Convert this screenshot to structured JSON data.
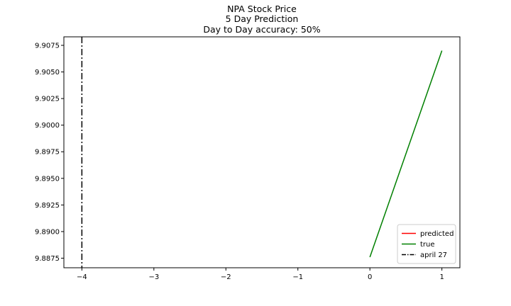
{
  "chart_data": {
    "type": "line",
    "title": [
      "NPA Stock Price",
      "5 Day Prediction",
      "Day to Day accuracy: 50%"
    ],
    "xlabel": "",
    "ylabel": "",
    "xlim": [
      -4.25,
      1.25
    ],
    "ylim": [
      9.8866,
      9.9083
    ],
    "xticks": [
      -4,
      -3,
      -2,
      -1,
      0,
      1
    ],
    "xtick_labels": [
      "−4",
      "−3",
      "−2",
      "−1",
      "0",
      "1"
    ],
    "yticks": [
      9.8875,
      9.89,
      9.8925,
      9.895,
      9.8975,
      9.9,
      9.9025,
      9.905,
      9.9075
    ],
    "ytick_labels": [
      "9.8875",
      "9.8900",
      "9.8925",
      "9.8950",
      "9.8975",
      "9.9000",
      "9.9025",
      "9.9050",
      "9.9075"
    ],
    "grid": false,
    "legend": "lower-right",
    "series": [
      {
        "name": "predicted",
        "color": "#ff0000",
        "style": "solid",
        "x": [],
        "y": []
      },
      {
        "name": "true",
        "color": "#008000",
        "style": "solid",
        "x": [
          0,
          1
        ],
        "y": [
          9.8876,
          9.907
        ]
      }
    ],
    "vlines": [
      {
        "name": "april 27",
        "x": -4,
        "color": "#000000",
        "style": "dashdot"
      }
    ]
  }
}
